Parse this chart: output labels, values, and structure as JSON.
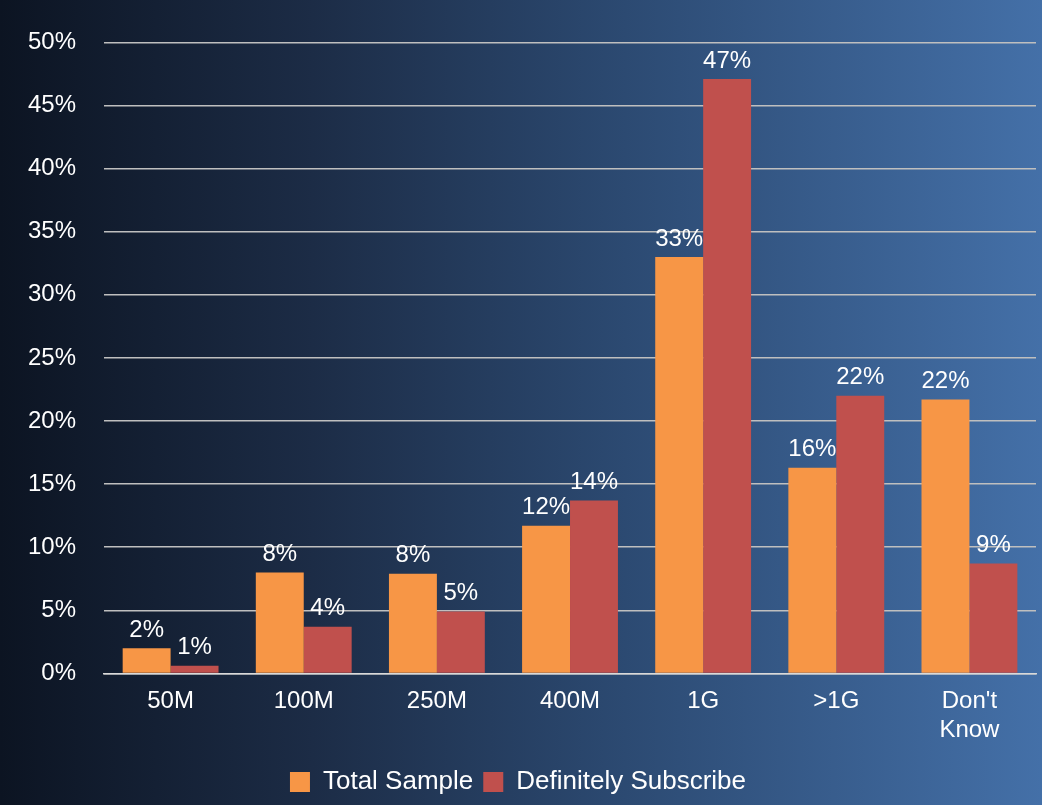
{
  "chart_data": {
    "type": "bar",
    "categories": [
      "50M",
      "100M",
      "250M",
      "400M",
      "1G",
      ">1G",
      "Don't Know"
    ],
    "series": [
      {
        "name": "Total Sample",
        "color": "#f79646",
        "values": [
          2.0,
          8.0,
          7.9,
          11.7,
          33.0,
          16.3,
          21.7
        ],
        "value_labels": [
          "2%",
          "8%",
          "8%",
          "12%",
          "33%",
          "16%",
          "22%"
        ]
      },
      {
        "name": "Definitely Subscribe",
        "color": "#c0504d",
        "values": [
          0.6,
          3.7,
          4.9,
          13.7,
          47.1,
          22.0,
          8.7
        ],
        "value_labels": [
          "1%",
          "4%",
          "5%",
          "14%",
          "47%",
          "22%",
          "9%"
        ]
      }
    ],
    "ylim": [
      0,
      50
    ],
    "yticks": [
      {
        "value": 0,
        "label": "0%"
      },
      {
        "value": 5,
        "label": "5%"
      },
      {
        "value": 10,
        "label": "10%"
      },
      {
        "value": 15,
        "label": "15%"
      },
      {
        "value": 20,
        "label": "20%"
      },
      {
        "value": 25,
        "label": "25%"
      },
      {
        "value": 30,
        "label": "30%"
      },
      {
        "value": 35,
        "label": "35%"
      },
      {
        "value": 40,
        "label": "40%"
      },
      {
        "value": 45,
        "label": "45%"
      },
      {
        "value": 50,
        "label": "50%"
      }
    ],
    "grid": "y",
    "legend": "bottom"
  }
}
